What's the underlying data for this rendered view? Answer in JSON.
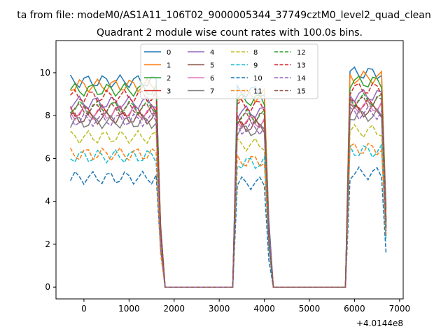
{
  "chart_data": {
    "type": "line",
    "suptitle": "ta from file: modeM0/AS1A11_106T02_9000005344_37749cztM0_level2_quad_clean",
    "title": "Quadrant 2 module wise count rates with 100.0s bins.",
    "xlabel": "",
    "ylabel": "",
    "x_offset_label": "+4.0144e8",
    "xlim": [
      -620,
      7080
    ],
    "ylim": [
      -0.55,
      11.5
    ],
    "x_ticks": [
      0,
      1000,
      2000,
      3000,
      4000,
      5000,
      6000,
      7000
    ],
    "y_ticks": [
      0,
      2,
      4,
      6,
      8,
      10
    ],
    "grid": false,
    "legend": {
      "placement": "top-center",
      "columns": 4
    },
    "x": [
      -300,
      -200,
      -100,
      0,
      100,
      200,
      300,
      400,
      500,
      600,
      700,
      800,
      900,
      1000,
      1100,
      1200,
      1300,
      1400,
      1500,
      1600,
      1700,
      1800,
      1900,
      2000,
      2100,
      2200,
      2300,
      2400,
      2500,
      2600,
      2700,
      2800,
      2900,
      3000,
      3100,
      3200,
      3300,
      3400,
      3500,
      3600,
      3700,
      3800,
      3900,
      4000,
      4100,
      4200,
      4300,
      4400,
      4500,
      4600,
      4700,
      4800,
      4900,
      5000,
      5100,
      5200,
      5300,
      5400,
      5500,
      5600,
      5700,
      5800,
      5900,
      6000,
      6100,
      6200,
      6300,
      6400,
      6500,
      6600,
      6700
    ],
    "series": [
      {
        "name": "0",
        "color": "#1f77b4",
        "style": "solid",
        "level": 9.6
      },
      {
        "name": "1",
        "color": "#ff7f0e",
        "style": "solid",
        "level": 9.4
      },
      {
        "name": "2",
        "color": "#2ca02c",
        "style": "solid",
        "level": 9.2
      },
      {
        "name": "3",
        "color": "#d62728",
        "style": "solid",
        "level": 8.2
      },
      {
        "name": "4",
        "color": "#9467bd",
        "style": "solid",
        "level": 8.6
      },
      {
        "name": "5",
        "color": "#8c564b",
        "style": "solid",
        "level": 7.9
      },
      {
        "name": "6",
        "color": "#e377c2",
        "style": "solid",
        "level": 8.1
      },
      {
        "name": "7",
        "color": "#7f7f7f",
        "style": "solid",
        "level": 7.7
      },
      {
        "name": "8",
        "color": "#bcbd22",
        "style": "dashed",
        "level": 7.0
      },
      {
        "name": "9",
        "color": "#17becf",
        "style": "dashed",
        "level": 6.1
      },
      {
        "name": "10",
        "color": "#1f77b4",
        "style": "dashed",
        "level": 5.1
      },
      {
        "name": "11",
        "color": "#ff7f0e",
        "style": "dashed",
        "level": 6.2
      },
      {
        "name": "12",
        "color": "#2ca02c",
        "style": "dashed",
        "level": 8.4
      },
      {
        "name": "13",
        "color": "#d62728",
        "style": "dashed",
        "level": 8.9
      },
      {
        "name": "14",
        "color": "#9467bd",
        "style": "dashed",
        "level": 7.8
      },
      {
        "name": "15",
        "color": "#8c564b",
        "style": "dashed",
        "level": 8.3
      }
    ]
  }
}
